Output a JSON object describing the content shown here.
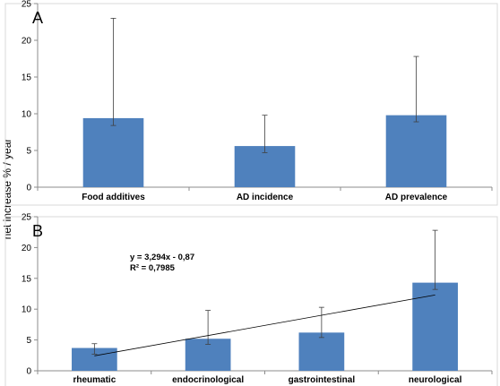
{
  "figure": {
    "ylabel": "net increase % / year"
  },
  "chart_data": [
    {
      "type": "bar",
      "panel_label": "A",
      "categories": [
        "Food additives",
        "AD incidence",
        "AD prevalence"
      ],
      "values": [
        9.4,
        5.6,
        9.8
      ],
      "error_low": [
        8.4,
        4.7,
        8.9
      ],
      "error_high": [
        23.0,
        9.8,
        17.8
      ],
      "ylim": [
        0,
        25
      ],
      "yticks": [
        "0",
        "5",
        "10",
        "15",
        "20",
        "25"
      ],
      "grid": false,
      "color": "#4f81bd"
    },
    {
      "type": "bar",
      "panel_label": "B",
      "categories": [
        "rheumatic",
        "endocrinological",
        "gastrointestinal",
        "neurological"
      ],
      "values": [
        3.7,
        5.2,
        6.2,
        14.3
      ],
      "error_low": [
        2.7,
        4.3,
        5.4,
        13.2
      ],
      "error_high": [
        4.4,
        9.8,
        10.3,
        22.8
      ],
      "ylim": [
        0,
        25
      ],
      "yticks": [
        "0",
        "5",
        "10",
        "15",
        "20",
        "25"
      ],
      "grid": false,
      "color": "#4f81bd",
      "trendline": {
        "slope": 3.294,
        "intercept": -0.87,
        "equation": "y = 3,294x - 0,87",
        "r_squared": "R² = 0,7985"
      }
    }
  ]
}
